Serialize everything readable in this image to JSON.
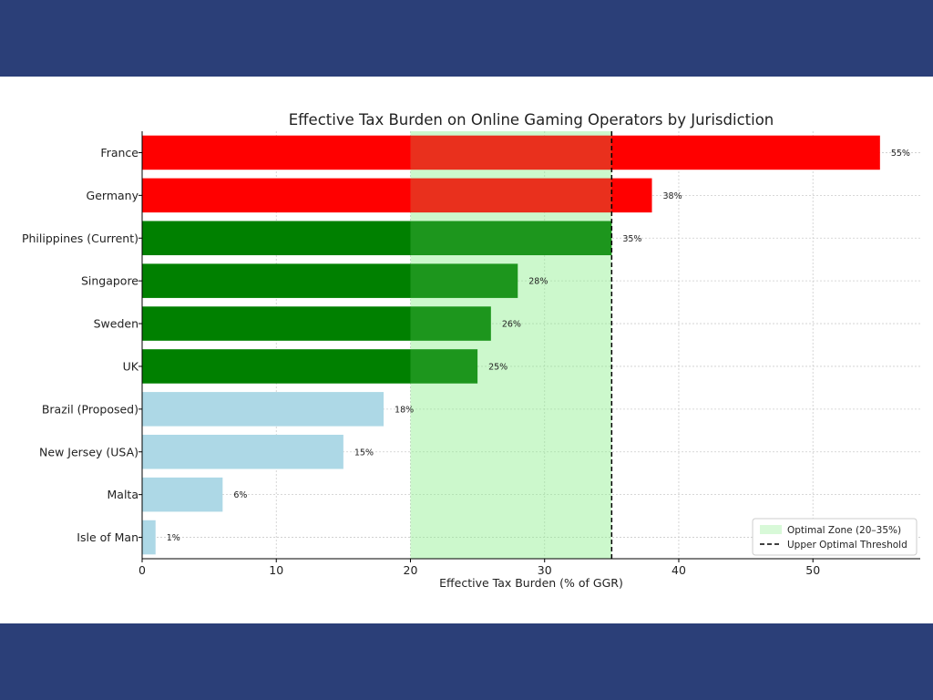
{
  "chart_data": {
    "type": "bar",
    "orientation": "horizontal",
    "title": "Effective Tax Burden on Online Gaming Operators by Jurisdiction",
    "xlabel": "Effective Tax Burden (% of GGR)",
    "ylabel": "",
    "xlim": [
      0,
      58
    ],
    "xticks": [
      0,
      10,
      20,
      30,
      40,
      50
    ],
    "grid": true,
    "categories": [
      "France",
      "Germany",
      "Philippines (Current)",
      "Singapore",
      "Sweden",
      "UK",
      "Brazil (Proposed)",
      "New Jersey (USA)",
      "Malta",
      "Isle of Man"
    ],
    "values": [
      55,
      38,
      35,
      28,
      26,
      25,
      18,
      15,
      6,
      1
    ],
    "value_labels": [
      "55%",
      "38%",
      "35%",
      "28%",
      "26%",
      "25%",
      "18%",
      "15%",
      "6%",
      "1%"
    ],
    "bar_colors": [
      "#ff0000",
      "#ff0000",
      "#008000",
      "#008000",
      "#008000",
      "#008000",
      "#add8e6",
      "#add8e6",
      "#add8e6",
      "#add8e6"
    ],
    "optimal_zone": {
      "from": 20,
      "to": 35,
      "color": "#90ee90",
      "label": "Optimal Zone (20–35%)"
    },
    "threshold": {
      "value": 35,
      "label": "Upper Optimal Threshold",
      "style": "dashed",
      "color": "#000000"
    },
    "legend_position": "lower right"
  },
  "colors": {
    "band": "#2b3f78"
  }
}
